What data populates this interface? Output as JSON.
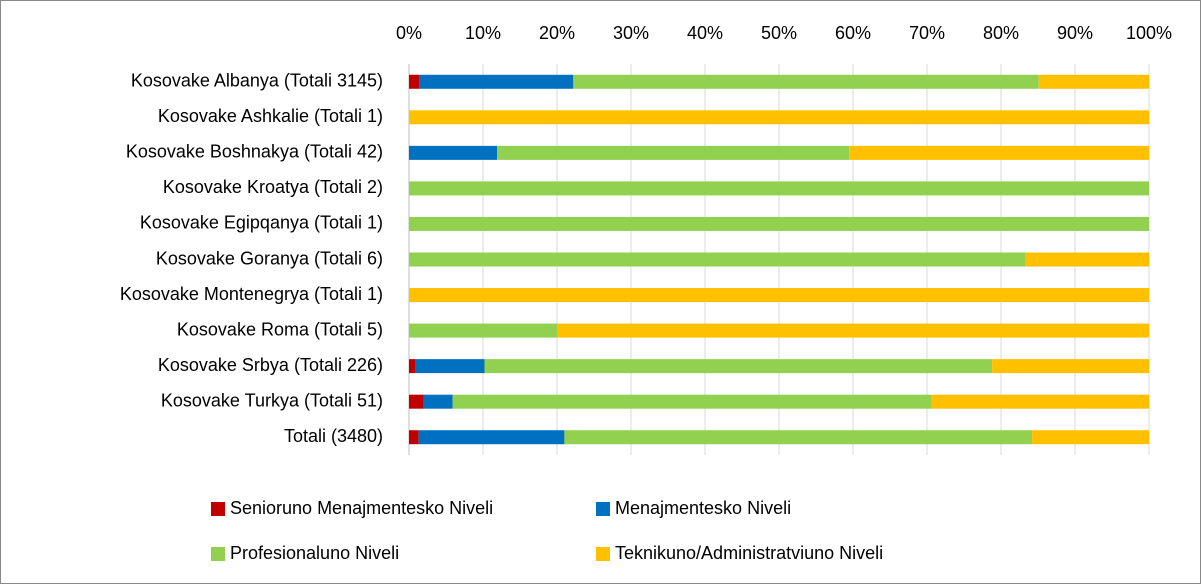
{
  "chart_data": {
    "type": "stacked_bar_horizontal",
    "categories": [
      "Kosovake Albanya (Totali 3145)",
      "Kosovake Ashkalie (Totali 1)",
      "Kosovake Boshnakya (Totali 42)",
      "Kosovake Kroatya (Totali 2)",
      "Kosovake Egipqanya (Totali 1)",
      "Kosovake Goranya (Totali 6)",
      "Kosovake Montenegrya (Totali 1)",
      "Kosovake Roma (Totali 5)",
      "Kosovake Srbya (Totali 226)",
      "Kosovake Turkya (Totali 51)",
      "Totali (3480)"
    ],
    "series": [
      {
        "name": "Senioruno Menajmentesko Niveli",
        "color": "#c00000",
        "values": [
          1.4,
          0,
          0,
          0,
          0,
          0,
          0,
          0,
          0.9,
          2.0,
          1.3
        ]
      },
      {
        "name": "Menajmentesko Niveli",
        "color": "#0070c0",
        "values": [
          20.8,
          0,
          11.9,
          0,
          0,
          0,
          0,
          0,
          9.3,
          3.9,
          19.7
        ]
      },
      {
        "name": "Profesionaluno Niveli",
        "color": "#92d050",
        "values": [
          62.9,
          0,
          47.6,
          100,
          100,
          83.3,
          0,
          20,
          68.6,
          64.7,
          63.2
        ]
      },
      {
        "name": "Teknikuno/Administratviuno Niveli",
        "color": "#ffc000",
        "values": [
          14.9,
          100,
          40.5,
          0,
          0,
          16.7,
          100,
          80,
          21.2,
          29.4,
          15.8
        ]
      }
    ],
    "xlim": [
      0,
      100
    ],
    "xticks": [
      {
        "value": 0,
        "label": "0%"
      },
      {
        "value": 10,
        "label": "10%"
      },
      {
        "value": 20,
        "label": "20%"
      },
      {
        "value": 30,
        "label": "30%"
      },
      {
        "value": 40,
        "label": "40%"
      },
      {
        "value": 50,
        "label": "50%"
      },
      {
        "value": 60,
        "label": "60%"
      },
      {
        "value": 70,
        "label": "70%"
      },
      {
        "value": 80,
        "label": "80%"
      },
      {
        "value": 90,
        "label": "90%"
      },
      {
        "value": 100,
        "label": "100%"
      }
    ],
    "grid": true,
    "legend": "bottom"
  }
}
